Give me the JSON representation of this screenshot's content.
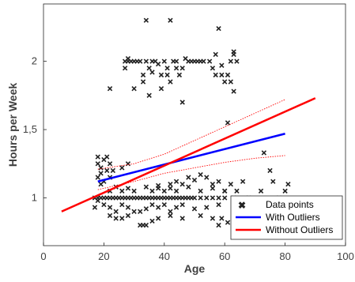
{
  "chart_data": {
    "type": "scatter",
    "title": "",
    "xlabel": "Age",
    "ylabel": "Hours per Week",
    "xlim": [
      0,
      100
    ],
    "ylim": [
      0.65,
      2.42
    ],
    "xticks": [
      0,
      20,
      40,
      60,
      80,
      100
    ],
    "xtick_labels": [
      "0",
      "20",
      "40",
      "60",
      "80",
      "100"
    ],
    "yticks": [
      1,
      1.5,
      2
    ],
    "ytick_labels": [
      "1",
      "1,5",
      "2"
    ],
    "grid": false,
    "legend_position": "bottom-right",
    "series": [
      {
        "name": "Data points",
        "kind": "scatter",
        "marker": "x",
        "color": "#222222",
        "points": [
          [
            17,
            1.0
          ],
          [
            18,
            1.0
          ],
          [
            19,
            1.0
          ],
          [
            20,
            1.0
          ],
          [
            21,
            1.0
          ],
          [
            22,
            1.0
          ],
          [
            23,
            1.0
          ],
          [
            24,
            1.0
          ],
          [
            25,
            1.0
          ],
          [
            26,
            1.0
          ],
          [
            27,
            1.0
          ],
          [
            28,
            1.0
          ],
          [
            29,
            1.0
          ],
          [
            30,
            1.0
          ],
          [
            31,
            1.0
          ],
          [
            32,
            1.0
          ],
          [
            33,
            1.0
          ],
          [
            34,
            1.0
          ],
          [
            35,
            1.0
          ],
          [
            36,
            1.0
          ],
          [
            37,
            1.0
          ],
          [
            38,
            1.0
          ],
          [
            39,
            1.0
          ],
          [
            40,
            1.0
          ],
          [
            41,
            1.0
          ],
          [
            42,
            1.0
          ],
          [
            43,
            1.0
          ],
          [
            44,
            1.0
          ],
          [
            45,
            1.0
          ],
          [
            46,
            1.0
          ],
          [
            47,
            1.0
          ],
          [
            48,
            1.0
          ],
          [
            49,
            1.0
          ],
          [
            50,
            1.0
          ],
          [
            52,
            1.0
          ],
          [
            54,
            1.0
          ],
          [
            56,
            1.0
          ],
          [
            58,
            1.0
          ],
          [
            60,
            1.0
          ],
          [
            63,
            1.0
          ],
          [
            18,
            1.3
          ],
          [
            18,
            1.25
          ],
          [
            19,
            1.22
          ],
          [
            19,
            1.18
          ],
          [
            20,
            1.28
          ],
          [
            21,
            1.3
          ],
          [
            19,
            1.1
          ],
          [
            18,
            1.15
          ],
          [
            20,
            1.12
          ],
          [
            21,
            1.2
          ],
          [
            22,
            1.15
          ],
          [
            17,
            0.93
          ],
          [
            18,
            0.98
          ],
          [
            20,
            0.95
          ],
          [
            22,
            0.93
          ],
          [
            24,
            0.9
          ],
          [
            26,
            0.95
          ],
          [
            28,
            0.93
          ],
          [
            30,
            0.9
          ],
          [
            32,
            0.9
          ],
          [
            34,
            0.92
          ],
          [
            36,
            0.95
          ],
          [
            38,
            0.93
          ],
          [
            40,
            0.95
          ],
          [
            42,
            0.9
          ],
          [
            44,
            0.93
          ],
          [
            46,
            0.95
          ],
          [
            50,
            0.92
          ],
          [
            54,
            0.93
          ],
          [
            58,
            0.95
          ],
          [
            22,
            0.87
          ],
          [
            24,
            0.85
          ],
          [
            26,
            0.85
          ],
          [
            28,
            0.87
          ],
          [
            32,
            0.8
          ],
          [
            33,
            0.8
          ],
          [
            34,
            0.8
          ],
          [
            36,
            0.83
          ],
          [
            38,
            0.85
          ],
          [
            42,
            0.87
          ],
          [
            46,
            0.85
          ],
          [
            52,
            0.87
          ],
          [
            56,
            0.85
          ],
          [
            58,
            0.8
          ],
          [
            59,
            0.85
          ],
          [
            61,
            0.82
          ],
          [
            22,
            1.05
          ],
          [
            24,
            1.08
          ],
          [
            26,
            1.05
          ],
          [
            28,
            1.07
          ],
          [
            30,
            1.05
          ],
          [
            34,
            1.08
          ],
          [
            36,
            1.05
          ],
          [
            38,
            1.07
          ],
          [
            40,
            1.05
          ],
          [
            42,
            1.07
          ],
          [
            44,
            1.05
          ],
          [
            48,
            1.08
          ],
          [
            52,
            1.05
          ],
          [
            56,
            1.07
          ],
          [
            60,
            1.05
          ],
          [
            64,
            1.05
          ],
          [
            46,
            1.1
          ],
          [
            48,
            1.15
          ],
          [
            50,
            1.13
          ],
          [
            52,
            1.17
          ],
          [
            54,
            1.15
          ],
          [
            56,
            1.1
          ],
          [
            58,
            1.12
          ],
          [
            60,
            1.05
          ],
          [
            62,
            1.1
          ],
          [
            66,
            1.12
          ],
          [
            76,
            1.12
          ],
          [
            72,
            1.05
          ],
          [
            78,
            1.0
          ],
          [
            80,
            1.05
          ],
          [
            68,
            1.0
          ],
          [
            75,
            1.2
          ],
          [
            81,
            1.1
          ],
          [
            73,
            1.33
          ],
          [
            61,
            1.55
          ],
          [
            38,
            1.09
          ],
          [
            42,
            1.1
          ],
          [
            44,
            1.12
          ],
          [
            28,
            1.25
          ],
          [
            22,
            1.25
          ],
          [
            26,
            1.22
          ],
          [
            23,
            1.2
          ],
          [
            27,
            1.95
          ],
          [
            27,
            2.0
          ],
          [
            28,
            2.02
          ],
          [
            28,
            2.0
          ],
          [
            29,
            2.0
          ],
          [
            30,
            2.0
          ],
          [
            31,
            2.0
          ],
          [
            32,
            2.0
          ],
          [
            33,
            1.9
          ],
          [
            34,
            2.0
          ],
          [
            35,
            1.95
          ],
          [
            36,
            2.0
          ],
          [
            37,
            2.0
          ],
          [
            38,
            1.98
          ],
          [
            39,
            1.9
          ],
          [
            40,
            2.0
          ],
          [
            41,
            1.9
          ],
          [
            42,
            1.85
          ],
          [
            43,
            2.0
          ],
          [
            44,
            1.95
          ],
          [
            45,
            1.9
          ],
          [
            46,
            1.95
          ],
          [
            48,
            2.0
          ],
          [
            49,
            2.0
          ],
          [
            50,
            2.0
          ],
          [
            51,
            2.0
          ],
          [
            52,
            2.0
          ],
          [
            53,
            2.0
          ],
          [
            55,
            2.0
          ],
          [
            56,
            1.95
          ],
          [
            57,
            1.9
          ],
          [
            60,
            1.85
          ],
          [
            62,
            2.0
          ],
          [
            63,
            2.05
          ],
          [
            64,
            2.0
          ],
          [
            47,
            2.02
          ],
          [
            44,
            2.0
          ],
          [
            41,
            1.95
          ],
          [
            36,
            1.92
          ],
          [
            22,
            1.8
          ],
          [
            30,
            1.8
          ],
          [
            33,
            1.85
          ],
          [
            35,
            1.75
          ],
          [
            39,
            1.8
          ],
          [
            46,
            1.7
          ],
          [
            59,
            1.9
          ],
          [
            57,
            2.05
          ],
          [
            59,
            1.97
          ],
          [
            61,
            1.9
          ],
          [
            62,
            1.85
          ],
          [
            63,
            1.78
          ],
          [
            34,
            2.3
          ],
          [
            42,
            2.3
          ],
          [
            58,
            2.24
          ],
          [
            63,
            2.07
          ]
        ]
      },
      {
        "name": "With Outliers",
        "kind": "line",
        "color": "#0000ff",
        "points": [
          [
            18,
            1.12
          ],
          [
            80,
            1.47
          ]
        ]
      },
      {
        "name": "Without Outliers",
        "kind": "line",
        "color": "#ff0000",
        "points": [
          [
            6,
            0.9
          ],
          [
            90,
            1.73
          ]
        ]
      }
    ],
    "confidence_band": {
      "color": "#ff0000",
      "upper": [
        [
          18,
          1.21
        ],
        [
          30,
          1.25
        ],
        [
          40,
          1.32
        ],
        [
          50,
          1.42
        ],
        [
          60,
          1.52
        ],
        [
          70,
          1.62
        ],
        [
          80,
          1.72
        ]
      ],
      "lower": [
        [
          18,
          1.06
        ],
        [
          30,
          1.12
        ],
        [
          40,
          1.18
        ],
        [
          50,
          1.22
        ],
        [
          60,
          1.26
        ],
        [
          70,
          1.29
        ],
        [
          80,
          1.31
        ]
      ]
    }
  }
}
